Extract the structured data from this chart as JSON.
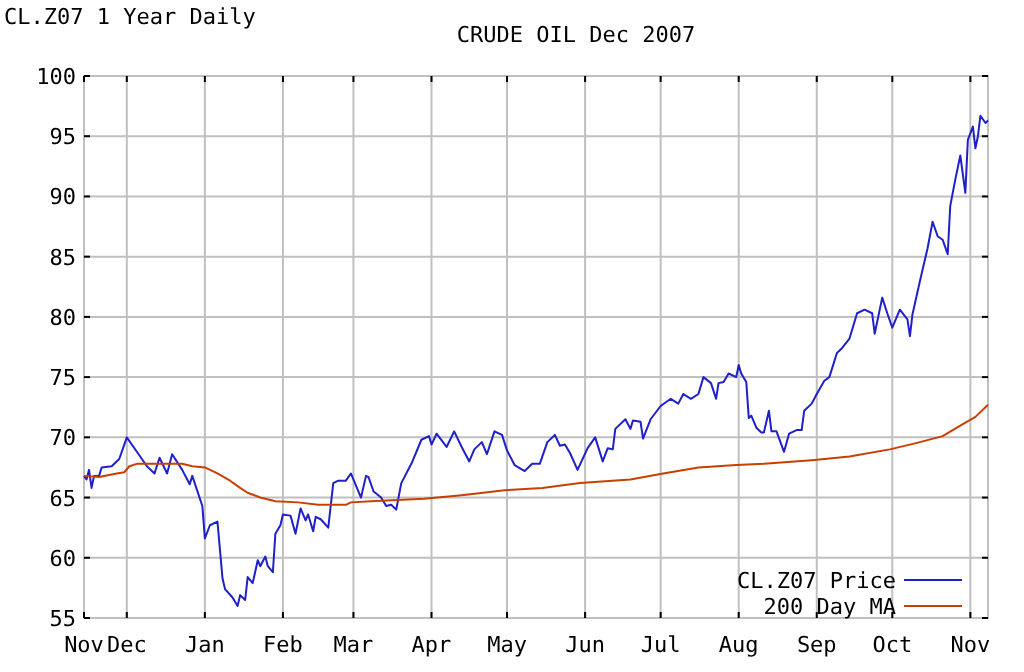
{
  "chart_data": {
    "type": "line",
    "title": "CRUDE OIL Dec 2007",
    "subtitle": "CL.Z07 1 Year Daily",
    "xlim": [
      "2006-11-14",
      "2007-11-08"
    ],
    "xticks": [
      {
        "value": "2006-11-14",
        "label": "Nov"
      },
      {
        "value": "2006-12-01",
        "label": "Dec"
      },
      {
        "value": "2007-01-01",
        "label": "Jan"
      },
      {
        "value": "2007-02-01",
        "label": "Feb"
      },
      {
        "value": "2007-03-01",
        "label": "Mar"
      },
      {
        "value": "2007-04-01",
        "label": "Apr"
      },
      {
        "value": "2007-05-01",
        "label": "May"
      },
      {
        "value": "2007-06-01",
        "label": "Jun"
      },
      {
        "value": "2007-07-01",
        "label": "Jul"
      },
      {
        "value": "2007-08-01",
        "label": "Aug"
      },
      {
        "value": "2007-09-01",
        "label": "Sep"
      },
      {
        "value": "2007-10-01",
        "label": "Oct"
      },
      {
        "value": "2007-11-01",
        "label": "Nov"
      }
    ],
    "ylim": [
      55,
      100
    ],
    "yticks": [
      55,
      60,
      65,
      70,
      75,
      80,
      85,
      90,
      95,
      100
    ],
    "grid": true,
    "legend": "bottom right",
    "line_style": "solid",
    "marker": "none",
    "series": [
      {
        "name": "CL.Z07 Price",
        "color": "#2020c8",
        "x": [
          "2006-11-14",
          "2006-11-15",
          "2006-11-16",
          "2006-11-17",
          "2006-11-18",
          "2006-11-20",
          "2006-11-21",
          "2006-11-25",
          "2006-11-28",
          "2006-12-01",
          "2006-12-05",
          "2006-12-09",
          "2006-12-12",
          "2006-12-14",
          "2006-12-17",
          "2006-12-19",
          "2006-12-23",
          "2006-12-26",
          "2006-12-27",
          "2006-12-31",
          "2007-01-01",
          "2007-01-03",
          "2007-01-06",
          "2007-01-08",
          "2007-01-09",
          "2007-01-12",
          "2007-01-14",
          "2007-01-15",
          "2007-01-17",
          "2007-01-18",
          "2007-01-20",
          "2007-01-22",
          "2007-01-23",
          "2007-01-25",
          "2007-01-26",
          "2007-01-28",
          "2007-01-29",
          "2007-01-31",
          "2007-02-01",
          "2007-02-04",
          "2007-02-06",
          "2007-02-08",
          "2007-02-10",
          "2007-02-11",
          "2007-02-13",
          "2007-02-14",
          "2007-02-16",
          "2007-02-19",
          "2007-02-21",
          "2007-02-23",
          "2007-02-26",
          "2007-02-28",
          "2007-03-04",
          "2007-03-06",
          "2007-03-07",
          "2007-03-09",
          "2007-03-12",
          "2007-03-14",
          "2007-03-16",
          "2007-03-18",
          "2007-03-20",
          "2007-03-24",
          "2007-03-28",
          "2007-03-31",
          "2007-04-01",
          "2007-04-03",
          "2007-04-07",
          "2007-04-10",
          "2007-04-13",
          "2007-04-16",
          "2007-04-18",
          "2007-04-21",
          "2007-04-23",
          "2007-04-26",
          "2007-04-29",
          "2007-05-01",
          "2007-05-04",
          "2007-05-08",
          "2007-05-11",
          "2007-05-14",
          "2007-05-17",
          "2007-05-20",
          "2007-05-22",
          "2007-05-24",
          "2007-05-26",
          "2007-05-29",
          "2007-06-02",
          "2007-06-05",
          "2007-06-08",
          "2007-06-10",
          "2007-06-12",
          "2007-06-13",
          "2007-06-17",
          "2007-06-19",
          "2007-06-20",
          "2007-06-23",
          "2007-06-24",
          "2007-06-27",
          "2007-07-01",
          "2007-07-05",
          "2007-07-08",
          "2007-07-10",
          "2007-07-13",
          "2007-07-16",
          "2007-07-18",
          "2007-07-21",
          "2007-07-23",
          "2007-07-24",
          "2007-07-26",
          "2007-07-28",
          "2007-07-31",
          "2007-08-01",
          "2007-08-02",
          "2007-08-04",
          "2007-08-05",
          "2007-08-06",
          "2007-08-08",
          "2007-08-10",
          "2007-08-11",
          "2007-08-13",
          "2007-08-14",
          "2007-08-16",
          "2007-08-19",
          "2007-08-21",
          "2007-08-24",
          "2007-08-26",
          "2007-08-27",
          "2007-08-30",
          "2007-09-01",
          "2007-09-04",
          "2007-09-06",
          "2007-09-09",
          "2007-09-11",
          "2007-09-14",
          "2007-09-17",
          "2007-09-20",
          "2007-09-23",
          "2007-09-24",
          "2007-09-27",
          "2007-09-29",
          "2007-10-01",
          "2007-10-04",
          "2007-10-07",
          "2007-10-08",
          "2007-10-09",
          "2007-10-12",
          "2007-10-15",
          "2007-10-17",
          "2007-10-19",
          "2007-10-21",
          "2007-10-23",
          "2007-10-24",
          "2007-10-26",
          "2007-10-28",
          "2007-10-30",
          "2007-10-31",
          "2007-11-02",
          "2007-11-03",
          "2007-11-04",
          "2007-11-05",
          "2007-11-07",
          "2007-11-08"
        ],
        "values": [
          66.8,
          66.5,
          67.3,
          65.8,
          66.8,
          66.8,
          67.5,
          67.6,
          68.2,
          70.0,
          68.8,
          67.6,
          67.0,
          68.3,
          67.0,
          68.6,
          67.3,
          66.1,
          66.8,
          64.3,
          61.6,
          62.7,
          63.0,
          58.3,
          57.4,
          56.7,
          56.0,
          56.9,
          56.5,
          58.4,
          57.9,
          59.8,
          59.3,
          60.1,
          59.3,
          58.8,
          62.0,
          62.7,
          63.6,
          63.5,
          62.0,
          64.1,
          63.1,
          63.6,
          62.2,
          63.4,
          63.2,
          62.5,
          66.2,
          66.4,
          66.4,
          67.0,
          65.0,
          66.8,
          66.7,
          65.5,
          65.0,
          64.3,
          64.4,
          64.0,
          66.2,
          67.8,
          69.8,
          70.1,
          69.4,
          70.3,
          69.2,
          70.5,
          69.2,
          68.0,
          69.0,
          69.6,
          68.6,
          70.5,
          70.2,
          68.9,
          67.7,
          67.2,
          67.8,
          67.8,
          69.6,
          70.2,
          69.3,
          69.4,
          68.7,
          67.3,
          69.1,
          70.0,
          68.0,
          69.1,
          69.0,
          70.7,
          71.5,
          70.7,
          71.4,
          71.3,
          69.9,
          71.5,
          72.6,
          73.2,
          72.8,
          73.6,
          73.2,
          73.6,
          75.0,
          74.5,
          73.2,
          74.5,
          74.6,
          75.3,
          75.0,
          76.0,
          75.3,
          74.6,
          71.6,
          71.8,
          70.8,
          70.4,
          70.4,
          72.2,
          70.5,
          70.5,
          68.8,
          70.3,
          70.6,
          70.6,
          72.2,
          72.8,
          73.6,
          74.7,
          75.0,
          77.0,
          77.4,
          78.2,
          80.3,
          80.6,
          80.3,
          78.6,
          81.6,
          80.3,
          79.1,
          80.6,
          79.8,
          78.4,
          80.2,
          83.0,
          85.7,
          87.9,
          86.7,
          86.4,
          85.2,
          89.2,
          91.4,
          93.4,
          90.3,
          94.7,
          95.8,
          94.0,
          95.0,
          96.7,
          96.1,
          96.3
        ]
      },
      {
        "name": "200 Day MA",
        "color": "#c84000",
        "x": [
          "2006-11-14",
          "2006-11-20",
          "2006-11-27",
          "2006-11-30",
          "2006-12-02",
          "2006-12-05",
          "2006-12-15",
          "2006-12-23",
          "2006-12-27",
          "2007-01-01",
          "2007-01-06",
          "2007-01-11",
          "2007-01-15",
          "2007-01-18",
          "2007-01-23",
          "2007-01-29",
          "2007-02-07",
          "2007-02-15",
          "2007-02-26",
          "2007-02-28",
          "2007-03-08",
          "2007-03-29",
          "2007-04-13",
          "2007-04-30",
          "2007-05-15",
          "2007-05-30",
          "2007-06-19",
          "2007-07-02",
          "2007-07-16",
          "2007-07-31",
          "2007-08-11",
          "2007-08-30",
          "2007-09-14",
          "2007-09-30",
          "2007-10-10",
          "2007-10-21",
          "2007-10-29",
          "2007-11-03",
          "2007-11-08"
        ],
        "values": [
          66.8,
          66.7,
          67.0,
          67.1,
          67.6,
          67.8,
          67.8,
          67.8,
          67.6,
          67.5,
          67.0,
          66.4,
          65.8,
          65.4,
          65.0,
          64.7,
          64.6,
          64.4,
          64.4,
          64.6,
          64.7,
          64.9,
          65.2,
          65.6,
          65.8,
          66.2,
          66.5,
          67.0,
          67.5,
          67.7,
          67.8,
          68.1,
          68.4,
          69.0,
          69.5,
          70.1,
          71.1,
          71.7,
          72.7
        ]
      }
    ]
  }
}
